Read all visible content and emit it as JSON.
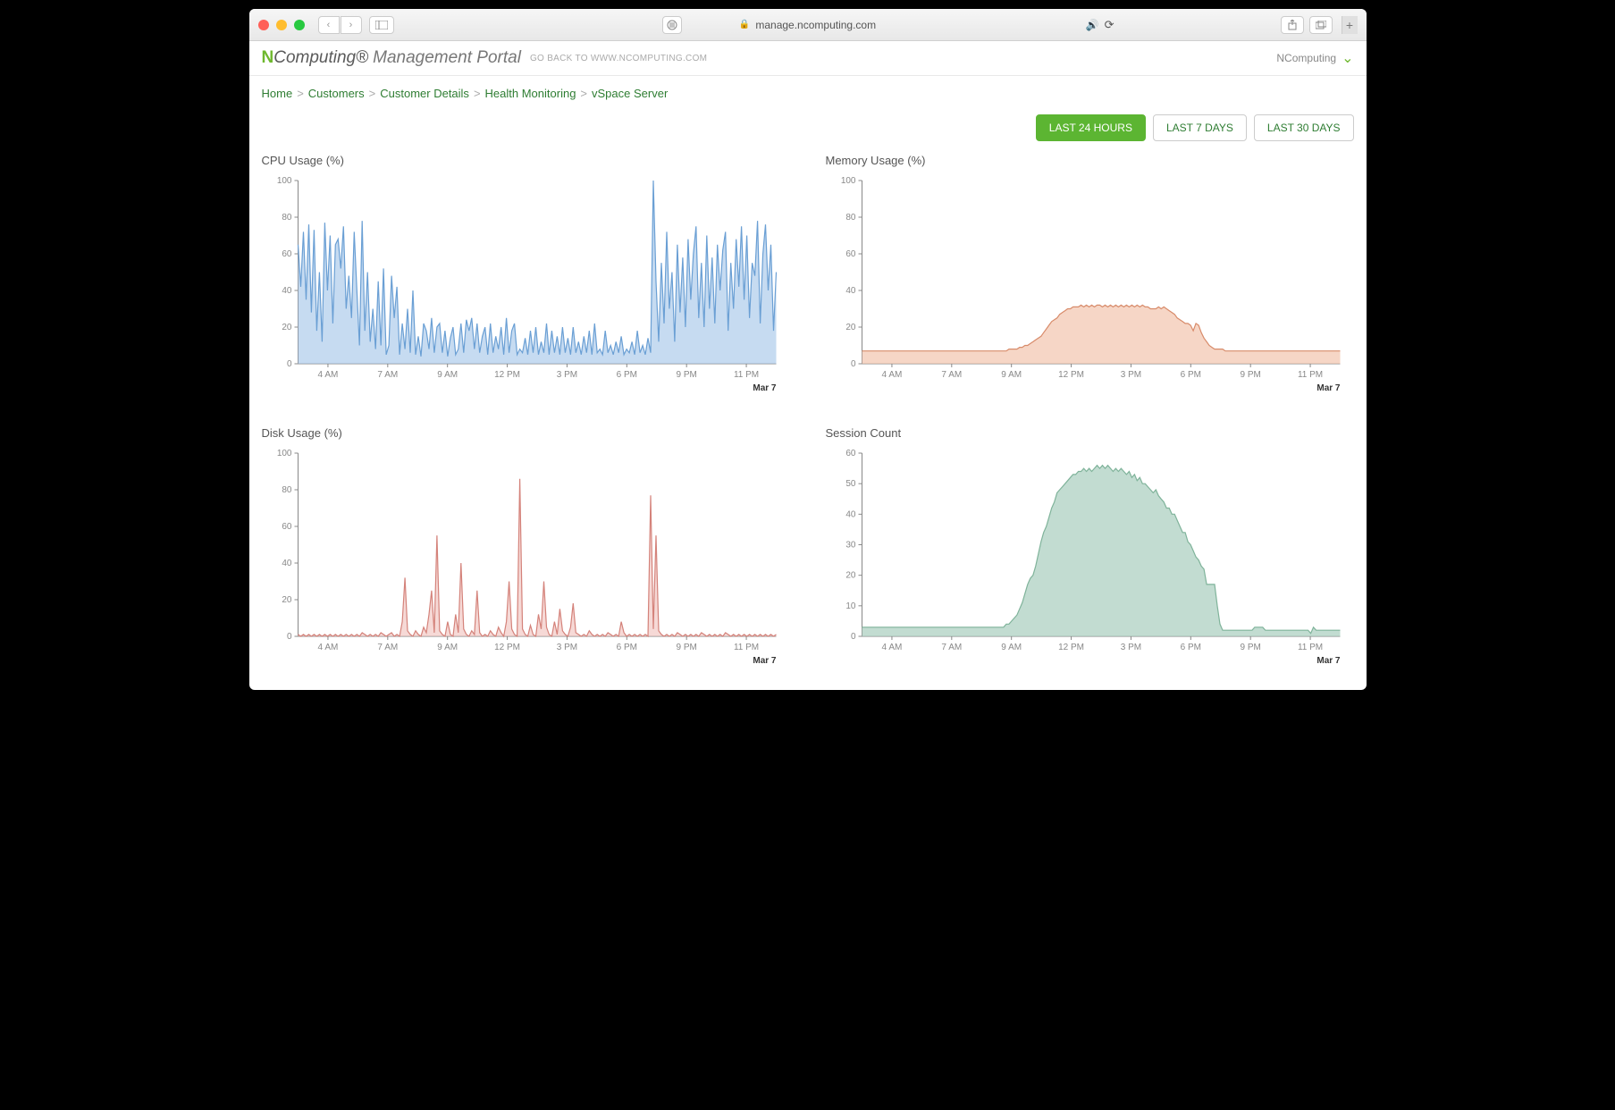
{
  "browser": {
    "url_host": "manage.ncomputing.com"
  },
  "header": {
    "brand_prefix": "N",
    "brand_text": "Computing",
    "portal_text": "Management Portal",
    "goback_text": "GO BACK TO WWW.NCOMPUTING.COM",
    "user_label": "NComputing"
  },
  "breadcrumb": {
    "items": [
      "Home",
      "Customers",
      "Customer Details",
      "Health Monitoring",
      "vSpace Server"
    ]
  },
  "time_buttons": {
    "items": [
      "LAST 24 HOURS",
      "LAST 7 DAYS",
      "LAST 30 DAYS"
    ],
    "active_index": 0
  },
  "x_axis": {
    "ticks": [
      "4 AM",
      "7 AM",
      "9 AM",
      "12 PM",
      "3 PM",
      "6 PM",
      "9 PM",
      "11 PM"
    ],
    "date_label": "Mar 7"
  },
  "charts": {
    "cpu": {
      "title": "CPU Usage (%)",
      "ylim": [
        0,
        100
      ],
      "ytick_step": 20,
      "stroke": "#6a9fd4",
      "fill": "#a8c8ea",
      "fill_opacity": 0.65,
      "values": [
        65,
        42,
        72,
        35,
        76,
        28,
        73,
        18,
        50,
        12,
        77,
        40,
        70,
        22,
        65,
        68,
        52,
        75,
        30,
        48,
        25,
        72,
        40,
        10,
        78,
        18,
        50,
        12,
        30,
        8,
        45,
        10,
        52,
        5,
        10,
        48,
        25,
        42,
        5,
        22,
        8,
        30,
        6,
        40,
        5,
        15,
        4,
        22,
        18,
        8,
        25,
        6,
        20,
        22,
        6,
        18,
        4,
        14,
        20,
        5,
        8,
        22,
        6,
        24,
        18,
        25,
        8,
        22,
        6,
        15,
        20,
        5,
        22,
        6,
        15,
        8,
        20,
        5,
        25,
        6,
        18,
        22,
        5,
        8,
        6,
        14,
        5,
        18,
        6,
        20,
        5,
        12,
        6,
        22,
        5,
        18,
        6,
        15,
        5,
        20,
        6,
        14,
        5,
        20,
        6,
        12,
        5,
        15,
        6,
        18,
        5,
        22,
        6,
        8,
        5,
        18,
        6,
        10,
        5,
        12,
        6,
        15,
        5,
        8,
        6,
        12,
        5,
        18,
        6,
        10,
        5,
        14,
        6,
        100,
        45,
        12,
        55,
        22,
        72,
        30,
        50,
        12,
        65,
        28,
        58,
        20,
        68,
        35,
        60,
        75,
        25,
        55,
        20,
        70,
        30,
        58,
        22,
        65,
        40,
        62,
        72,
        18,
        55,
        30,
        68,
        42,
        75,
        35,
        70,
        25,
        55,
        48,
        78,
        22,
        60,
        76,
        40,
        65,
        18,
        50
      ]
    },
    "memory": {
      "title": "Memory Usage (%)",
      "ylim": [
        0,
        100
      ],
      "ytick_step": 20,
      "stroke": "#d88b6a",
      "fill": "#f2c4ae",
      "fill_opacity": 0.7,
      "values": [
        7,
        7,
        7,
        7,
        7,
        7,
        7,
        7,
        7,
        7,
        7,
        7,
        7,
        7,
        7,
        7,
        7,
        7,
        7,
        7,
        7,
        7,
        7,
        7,
        7,
        7,
        7,
        7,
        7,
        7,
        7,
        7,
        7,
        7,
        7,
        7,
        7,
        7,
        7,
        7,
        7,
        7,
        7,
        7,
        7,
        7,
        7,
        7,
        7,
        7,
        7,
        7,
        7,
        7,
        7,
        8,
        8,
        8,
        8,
        9,
        9,
        10,
        10,
        11,
        12,
        13,
        14,
        15,
        17,
        19,
        21,
        23,
        24,
        25,
        27,
        28,
        29,
        30,
        30,
        31,
        31,
        31,
        32,
        31,
        32,
        31,
        32,
        31,
        32,
        32,
        31,
        32,
        31,
        32,
        31,
        32,
        31,
        32,
        31,
        32,
        31,
        32,
        31,
        32,
        31,
        32,
        31,
        31,
        30,
        30,
        30,
        31,
        30,
        31,
        30,
        29,
        28,
        27,
        25,
        24,
        23,
        22,
        22,
        21,
        18,
        22,
        21,
        17,
        14,
        12,
        10,
        9,
        8,
        8,
        8,
        8,
        7,
        7,
        7,
        7,
        7,
        7,
        7,
        7,
        7,
        7,
        7,
        7,
        7,
        7,
        7,
        7,
        7,
        7,
        7,
        7,
        7,
        7,
        7,
        7,
        7,
        7,
        7,
        7,
        7,
        7,
        7,
        7,
        7,
        7,
        7,
        7,
        7,
        7,
        7,
        7,
        7,
        7,
        7,
        7
      ]
    },
    "disk": {
      "title": "Disk Usage (%)",
      "ylim": [
        0,
        100
      ],
      "ytick_step": 20,
      "stroke": "#d4827a",
      "fill": "#f0c0bb",
      "fill_opacity": 0.6,
      "values": [
        1,
        0,
        1,
        0,
        1,
        0,
        1,
        0,
        1,
        0,
        1,
        0,
        1,
        0,
        1,
        0,
        1,
        0,
        1,
        0,
        1,
        0,
        1,
        0,
        2,
        1,
        0,
        1,
        0,
        1,
        0,
        2,
        1,
        0,
        1,
        2,
        0,
        1,
        0,
        8,
        32,
        3,
        1,
        0,
        3,
        1,
        0,
        5,
        2,
        12,
        25,
        2,
        55,
        3,
        1,
        0,
        8,
        1,
        0,
        12,
        2,
        40,
        4,
        1,
        0,
        3,
        1,
        25,
        2,
        0,
        1,
        0,
        3,
        1,
        0,
        5,
        2,
        0,
        8,
        30,
        4,
        1,
        0,
        86,
        4,
        1,
        0,
        6,
        1,
        0,
        12,
        4,
        30,
        5,
        1,
        0,
        8,
        1,
        15,
        3,
        1,
        0,
        5,
        18,
        2,
        1,
        0,
        1,
        0,
        3,
        1,
        0,
        1,
        0,
        1,
        0,
        2,
        1,
        0,
        1,
        0,
        8,
        2,
        0,
        1,
        0,
        1,
        0,
        1,
        0,
        1,
        0,
        77,
        4,
        55,
        3,
        1,
        0,
        1,
        0,
        1,
        0,
        2,
        1,
        0,
        1,
        0,
        1,
        0,
        1,
        0,
        2,
        1,
        0,
        1,
        0,
        1,
        0,
        1,
        0,
        2,
        1,
        0,
        1,
        0,
        1,
        0,
        1,
        0,
        1,
        0,
        1,
        0,
        1,
        0,
        1,
        0,
        1,
        0,
        1
      ]
    },
    "session": {
      "title": "Session Count",
      "ylim": [
        0,
        60
      ],
      "ytick_step": 10,
      "stroke": "#7fb39a",
      "fill": "#aed0c1",
      "fill_opacity": 0.75,
      "values": [
        3,
        3,
        3,
        3,
        3,
        3,
        3,
        3,
        3,
        3,
        3,
        3,
        3,
        3,
        3,
        3,
        3,
        3,
        3,
        3,
        3,
        3,
        3,
        3,
        3,
        3,
        3,
        3,
        3,
        3,
        3,
        3,
        3,
        3,
        3,
        3,
        3,
        3,
        3,
        3,
        3,
        3,
        3,
        3,
        3,
        3,
        3,
        3,
        3,
        3,
        3,
        3,
        3,
        3,
        4,
        4,
        5,
        6,
        7,
        9,
        11,
        14,
        17,
        19,
        20,
        23,
        27,
        31,
        34,
        36,
        39,
        42,
        44,
        47,
        48,
        49,
        50,
        51,
        52,
        53,
        53,
        54,
        54,
        55,
        54,
        55,
        54,
        55,
        56,
        55,
        56,
        55,
        56,
        55,
        54,
        55,
        54,
        55,
        54,
        53,
        54,
        52,
        53,
        51,
        52,
        50,
        50,
        49,
        48,
        47,
        48,
        46,
        45,
        44,
        42,
        42,
        40,
        40,
        38,
        36,
        34,
        34,
        31,
        30,
        28,
        26,
        25,
        23,
        22,
        17,
        17,
        17,
        17,
        10,
        4,
        2,
        2,
        2,
        2,
        2,
        2,
        2,
        2,
        2,
        2,
        2,
        2,
        3,
        3,
        3,
        3,
        2,
        2,
        2,
        2,
        2,
        2,
        2,
        2,
        2,
        2,
        2,
        2,
        2,
        2,
        2,
        2,
        2,
        1,
        3,
        2,
        2,
        2,
        2,
        2,
        2,
        2,
        2,
        2,
        2
      ]
    }
  }
}
